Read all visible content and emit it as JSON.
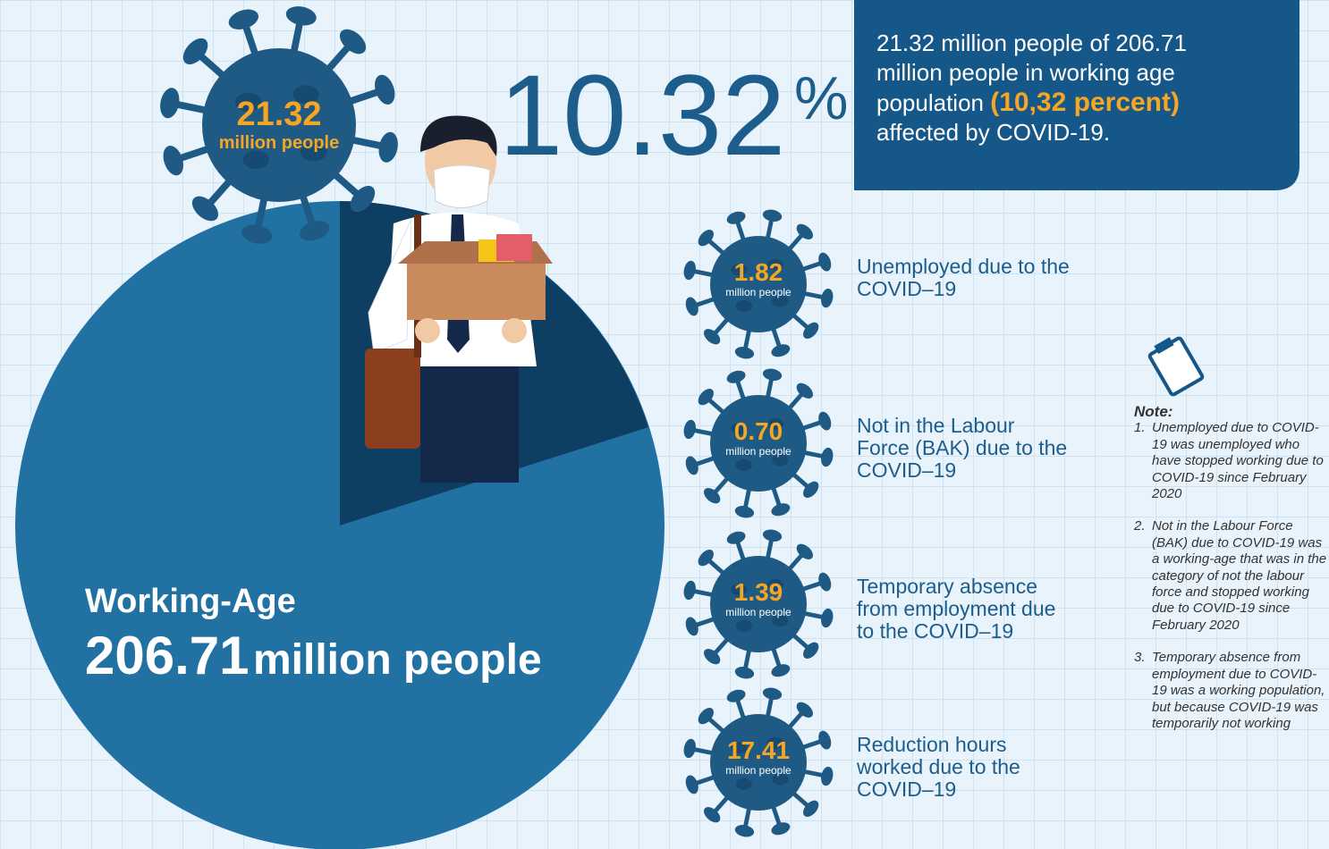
{
  "header": {
    "count_value": "21.32",
    "count_unit": "million people",
    "percent_value": "10.32",
    "percent_sign": "%"
  },
  "summary": {
    "text_before": "21.32 million people of 206.71 million people in working age population",
    "highlight": "(10,32 percent)",
    "text_after": "affected by COVID-19."
  },
  "working_age": {
    "label": "Working-Age",
    "value": "206.71",
    "unit": "million people"
  },
  "impacts": [
    {
      "value": "1.82",
      "unit": "million people",
      "label": "Unemployed due to the COVID–19"
    },
    {
      "value": "0.70",
      "unit": "million people",
      "label": "Not in the Labour Force (BAK) due to the COVID–19"
    },
    {
      "value": "1.39",
      "unit": "million people",
      "label": "Temporary absence from employment due to the COVID–19"
    },
    {
      "value": "17.41",
      "unit": "million people",
      "label": "Reduction hours worked due to the COVID–19"
    }
  ],
  "note": {
    "title": "Note:",
    "items": [
      {
        "marker": "1.",
        "text": "Unemployed due to COVID-19 was unemployed who have stopped working due to COVID-19 since February 2020"
      },
      {
        "marker": "2.",
        "text": "Not in the Labour Force (BAK) due to COVID-19 was a working-age that was in the category of not the labour force and stopped working due to COVID-19 since February 2020"
      },
      {
        "marker": "3.",
        "text": "Temporary absence from employment due to COVID-19 was a working population, but because COVID-19 was temporarily not working"
      }
    ]
  }
}
